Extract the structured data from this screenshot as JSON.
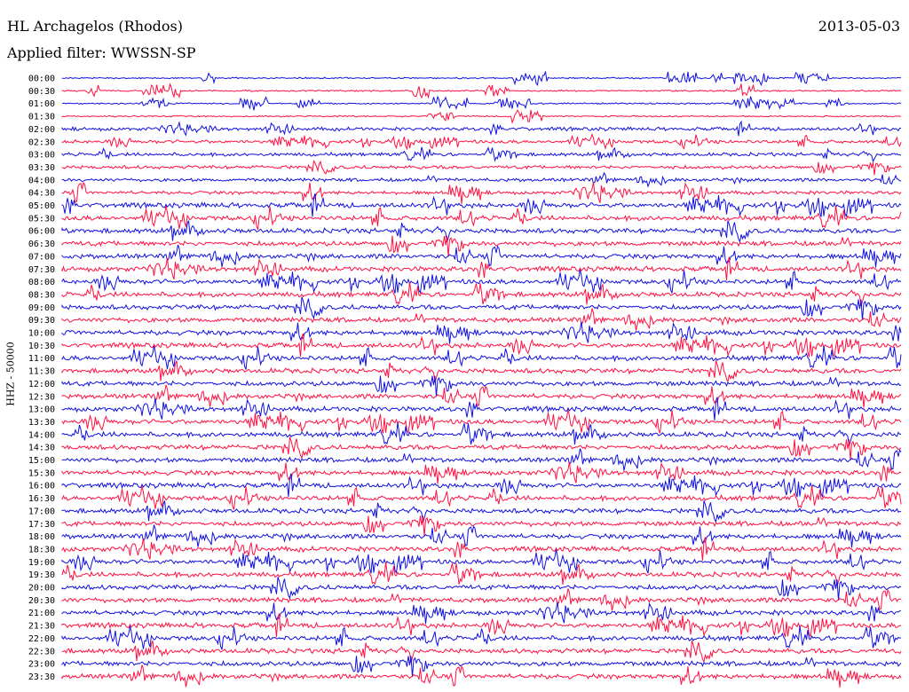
{
  "header": {
    "station": "HL Archagelos (Rhodos)",
    "filter": "Applied filter: WWSSN-SP",
    "date": "2013-05-03"
  },
  "axis_label": "HHZ - 50000",
  "colors": {
    "blue": "#1010e0",
    "red": "#ff1040"
  },
  "rows": [
    "00:00",
    "00:30",
    "01:00",
    "01:30",
    "02:00",
    "02:30",
    "03:00",
    "03:30",
    "04:00",
    "04:30",
    "05:00",
    "05:30",
    "06:00",
    "06:30",
    "07:00",
    "07:30",
    "08:00",
    "08:30",
    "09:00",
    "09:30",
    "10:00",
    "10:30",
    "11:00",
    "11:30",
    "12:00",
    "12:30",
    "13:00",
    "13:30",
    "14:00",
    "14:30",
    "15:00",
    "15:30",
    "16:00",
    "16:30",
    "17:00",
    "17:30",
    "18:00",
    "18:30",
    "19:00",
    "19:30",
    "20:00",
    "20:30",
    "21:00",
    "21:30",
    "22:00",
    "22:30",
    "23:00",
    "23:30"
  ]
}
